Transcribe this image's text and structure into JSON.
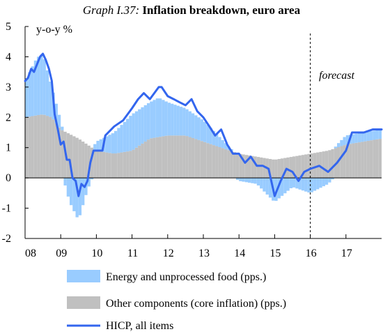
{
  "title_prefix": "Graph I.37:",
  "title_main": "Inflation breakdown, euro area",
  "chart_data": {
    "type": "bar",
    "ylabel": "y-o-y %",
    "ylim": [
      -2,
      5
    ],
    "yticks": [
      5,
      4,
      3,
      2,
      1,
      0,
      -1,
      -2
    ],
    "xlim": [
      2008.0,
      2018.0
    ],
    "xticks": [
      {
        "label": "08",
        "x": 2008.0
      },
      {
        "label": "09",
        "x": 2009.0
      },
      {
        "label": "10",
        "x": 2010.0
      },
      {
        "label": "11",
        "x": 2011.0
      },
      {
        "label": "12",
        "x": 2012.0
      },
      {
        "label": "13",
        "x": 2013.0
      },
      {
        "label": "14",
        "x": 2014.0
      },
      {
        "label": "15",
        "x": 2015.0
      },
      {
        "label": "16",
        "x": 2016.0
      },
      {
        "label": "17",
        "x": 2017.0
      }
    ],
    "forecast_start": 2016.0,
    "forecast_label": "forecast",
    "grid": false,
    "legend_position": "bottom",
    "series": [
      {
        "name": "Energy and unprocessed food (pps.)",
        "color": "#99ccff",
        "key_points": [
          [
            2008.0,
            1.2
          ],
          [
            2008.33,
            1.9
          ],
          [
            2008.5,
            2.0
          ],
          [
            2008.75,
            1.0
          ],
          [
            2009.0,
            0.3
          ],
          [
            2009.25,
            -0.8
          ],
          [
            2009.5,
            -1.4
          ],
          [
            2009.75,
            -0.4
          ],
          [
            2010.0,
            0.3
          ],
          [
            2010.5,
            0.7
          ],
          [
            2011.0,
            1.2
          ],
          [
            2011.5,
            1.2
          ],
          [
            2011.75,
            1.3
          ],
          [
            2012.0,
            1.1
          ],
          [
            2012.5,
            0.9
          ],
          [
            2013.0,
            0.7
          ],
          [
            2013.5,
            0.3
          ],
          [
            2014.0,
            -0.1
          ],
          [
            2014.5,
            -0.2
          ],
          [
            2015.0,
            -0.8
          ],
          [
            2015.5,
            -0.3
          ],
          [
            2016.0,
            -0.5
          ],
          [
            2016.5,
            -0.2
          ],
          [
            2016.75,
            0.1
          ],
          [
            2017.0,
            0.3
          ],
          [
            2017.5,
            0.3
          ],
          [
            2018.0,
            0.3
          ]
        ]
      },
      {
        "name": "Other components (core inflation) (pps.)",
        "color": "#c0c0c0",
        "key_points": [
          [
            2008.0,
            2.0
          ],
          [
            2008.5,
            2.1
          ],
          [
            2008.75,
            2.0
          ],
          [
            2009.0,
            1.6
          ],
          [
            2009.5,
            1.3
          ],
          [
            2010.0,
            0.9
          ],
          [
            2010.5,
            0.8
          ],
          [
            2011.0,
            0.9
          ],
          [
            2011.5,
            1.3
          ],
          [
            2012.0,
            1.4
          ],
          [
            2012.5,
            1.4
          ],
          [
            2013.0,
            1.2
          ],
          [
            2013.5,
            1.0
          ],
          [
            2014.0,
            0.8
          ],
          [
            2014.5,
            0.7
          ],
          [
            2015.0,
            0.6
          ],
          [
            2015.5,
            0.7
          ],
          [
            2016.0,
            0.8
          ],
          [
            2016.5,
            0.9
          ],
          [
            2017.0,
            1.1
          ],
          [
            2017.5,
            1.2
          ],
          [
            2018.0,
            1.3
          ]
        ]
      },
      {
        "name": "HICP, all items",
        "color": "#3366ee",
        "key_points": [
          [
            2008.0,
            3.2
          ],
          [
            2008.08,
            3.3
          ],
          [
            2008.17,
            3.6
          ],
          [
            2008.25,
            3.5
          ],
          [
            2008.42,
            4.0
          ],
          [
            2008.5,
            4.1
          ],
          [
            2008.58,
            3.9
          ],
          [
            2008.67,
            3.6
          ],
          [
            2008.75,
            3.2
          ],
          [
            2008.83,
            2.1
          ],
          [
            2008.92,
            1.6
          ],
          [
            2009.0,
            1.1
          ],
          [
            2009.08,
            1.2
          ],
          [
            2009.17,
            0.6
          ],
          [
            2009.25,
            0.6
          ],
          [
            2009.33,
            0.0
          ],
          [
            2009.42,
            -0.1
          ],
          [
            2009.5,
            -0.6
          ],
          [
            2009.58,
            -0.2
          ],
          [
            2009.67,
            -0.3
          ],
          [
            2009.75,
            -0.1
          ],
          [
            2009.83,
            0.5
          ],
          [
            2009.92,
            0.9
          ],
          [
            2010.0,
            0.9
          ],
          [
            2010.17,
            0.9
          ],
          [
            2010.25,
            1.4
          ],
          [
            2010.5,
            1.7
          ],
          [
            2010.75,
            1.9
          ],
          [
            2011.0,
            2.3
          ],
          [
            2011.17,
            2.6
          ],
          [
            2011.33,
            2.8
          ],
          [
            2011.5,
            2.6
          ],
          [
            2011.75,
            3.0
          ],
          [
            2011.83,
            3.0
          ],
          [
            2012.0,
            2.7
          ],
          [
            2012.17,
            2.6
          ],
          [
            2012.33,
            2.5
          ],
          [
            2012.5,
            2.4
          ],
          [
            2012.67,
            2.6
          ],
          [
            2012.83,
            2.2
          ],
          [
            2013.0,
            2.0
          ],
          [
            2013.17,
            1.7
          ],
          [
            2013.33,
            1.4
          ],
          [
            2013.5,
            1.6
          ],
          [
            2013.67,
            1.1
          ],
          [
            2013.83,
            0.8
          ],
          [
            2014.0,
            0.8
          ],
          [
            2014.17,
            0.5
          ],
          [
            2014.33,
            0.7
          ],
          [
            2014.5,
            0.4
          ],
          [
            2014.67,
            0.4
          ],
          [
            2014.83,
            0.3
          ],
          [
            2015.0,
            -0.6
          ],
          [
            2015.17,
            -0.1
          ],
          [
            2015.33,
            0.3
          ],
          [
            2015.5,
            0.2
          ],
          [
            2015.67,
            -0.1
          ],
          [
            2015.83,
            0.2
          ],
          [
            2016.0,
            0.3
          ],
          [
            2016.25,
            0.4
          ],
          [
            2016.5,
            0.2
          ],
          [
            2016.75,
            0.5
          ],
          [
            2017.0,
            0.9
          ],
          [
            2017.17,
            1.5
          ],
          [
            2017.5,
            1.5
          ],
          [
            2017.75,
            1.6
          ],
          [
            2018.0,
            1.6
          ]
        ]
      }
    ]
  }
}
